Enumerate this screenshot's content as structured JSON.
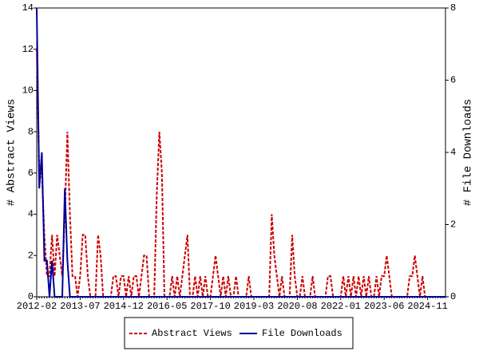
{
  "chart_data": {
    "type": "line",
    "y_label": "# Abstract Views",
    "y2_label": "# File Downloads",
    "categories": [
      "2012-02",
      null,
      null,
      null,
      null,
      null,
      null,
      null,
      null,
      null,
      null,
      null,
      null,
      null,
      null,
      null,
      null,
      "2013-07",
      null,
      null,
      null,
      null,
      null,
      null,
      null,
      null,
      null,
      null,
      null,
      null,
      null,
      null,
      null,
      null,
      "2014-12",
      null,
      null,
      null,
      null,
      null,
      null,
      null,
      null,
      null,
      null,
      null,
      null,
      null,
      null,
      null,
      null,
      "2016-05",
      null,
      null,
      null,
      null,
      null,
      null,
      null,
      null,
      null,
      null,
      null,
      null,
      null,
      null,
      null,
      null,
      "2017-10",
      null,
      null,
      null,
      null,
      null,
      null,
      null,
      null,
      null,
      null,
      null,
      null,
      null,
      null,
      null,
      null,
      "2019-03",
      null,
      null,
      null,
      null,
      null,
      null,
      null,
      null,
      null,
      null,
      null,
      null,
      null,
      null,
      null,
      null,
      "2020-08",
      null,
      null,
      null,
      null,
      null,
      null,
      null,
      null,
      null,
      null,
      null,
      null,
      null,
      null,
      null,
      null,
      "2022-01",
      null,
      null,
      null,
      null,
      null,
      null,
      null,
      null,
      null,
      null,
      null,
      null,
      null,
      null,
      null,
      null,
      "2023-06",
      null,
      null,
      null,
      null,
      null,
      null,
      null,
      null,
      null,
      null,
      null,
      null,
      null,
      null,
      null,
      null,
      "2024-11",
      null,
      null,
      null,
      null,
      null,
      null,
      null
    ],
    "series": [
      {
        "name": "Abstract Views",
        "color": "#cc0000",
        "dash": true,
        "values": [
          12,
          6,
          6,
          3,
          1,
          1,
          3,
          1,
          3,
          2,
          1,
          4,
          8,
          4,
          1,
          1,
          0,
          1,
          3,
          3,
          1,
          0,
          0,
          0,
          3,
          2,
          0,
          0,
          0,
          0,
          1,
          1,
          0,
          1,
          1,
          0,
          1,
          0,
          1,
          1,
          0,
          1,
          2,
          2,
          0,
          0,
          0,
          5,
          8,
          6,
          0,
          0,
          0,
          1,
          0,
          1,
          0,
          1,
          2,
          3,
          0,
          0,
          1,
          0,
          1,
          0,
          1,
          0,
          0,
          1,
          2,
          1,
          0,
          1,
          0,
          1,
          0,
          0,
          1,
          0,
          0,
          0,
          0,
          1,
          0,
          0,
          0,
          0,
          0,
          0,
          0,
          0,
          4,
          2,
          1,
          0,
          1,
          0,
          0,
          0,
          3,
          1,
          0,
          0,
          1,
          0,
          0,
          0,
          1,
          0,
          0,
          0,
          0,
          0,
          1,
          1,
          0,
          0,
          0,
          0,
          1,
          0,
          1,
          0,
          1,
          0,
          1,
          0,
          1,
          0,
          1,
          0,
          0,
          1,
          0,
          1,
          1,
          2,
          1,
          0,
          0,
          0,
          0,
          0,
          0,
          0,
          1,
          1,
          2,
          1,
          0,
          1,
          0,
          0,
          0,
          0,
          0,
          0,
          0,
          0,
          0
        ]
      },
      {
        "name": "File Downloads",
        "color": "#000099",
        "dash": false,
        "axis": "y2",
        "values": [
          8,
          3,
          4,
          1,
          1,
          0,
          1,
          0,
          0,
          0,
          0,
          3,
          1,
          0,
          0,
          0,
          0,
          0,
          0,
          0,
          0,
          0,
          0,
          0,
          0,
          0,
          0,
          0,
          0,
          0,
          0,
          0,
          0,
          0,
          0,
          0,
          0,
          0,
          0,
          0,
          0,
          0,
          0,
          0,
          0,
          0,
          0,
          0,
          0,
          0,
          0,
          0,
          0,
          0,
          0,
          0,
          0,
          0,
          0,
          0,
          0,
          0,
          0,
          0,
          0,
          0,
          0,
          0,
          0,
          0,
          0,
          0,
          0,
          0,
          0,
          0,
          0,
          0,
          0,
          0,
          0,
          0,
          0,
          0,
          0,
          0,
          0,
          0,
          0,
          0,
          0,
          0,
          0,
          0,
          0,
          0,
          0,
          0,
          0,
          0,
          0,
          0,
          0,
          0,
          0,
          0,
          0,
          0,
          0,
          0,
          0,
          0,
          0,
          0,
          0,
          0,
          0,
          0,
          0,
          0,
          0,
          0,
          0,
          0,
          0,
          0,
          0,
          0,
          0,
          0,
          0,
          0,
          0,
          0,
          0,
          0,
          0,
          0,
          0,
          0,
          0,
          0,
          0,
          0,
          0,
          0,
          0,
          0,
          0,
          0,
          0,
          0,
          0,
          0,
          0,
          0,
          0,
          0,
          0,
          0,
          0
        ]
      }
    ],
    "ylim": [
      0,
      14
    ],
    "yticks": [
      0,
      2,
      4,
      6,
      8,
      10,
      12,
      14
    ],
    "y2lim": [
      0,
      8
    ],
    "y2ticks": [
      0,
      2,
      4,
      6,
      8
    ],
    "legend": "bottom"
  }
}
